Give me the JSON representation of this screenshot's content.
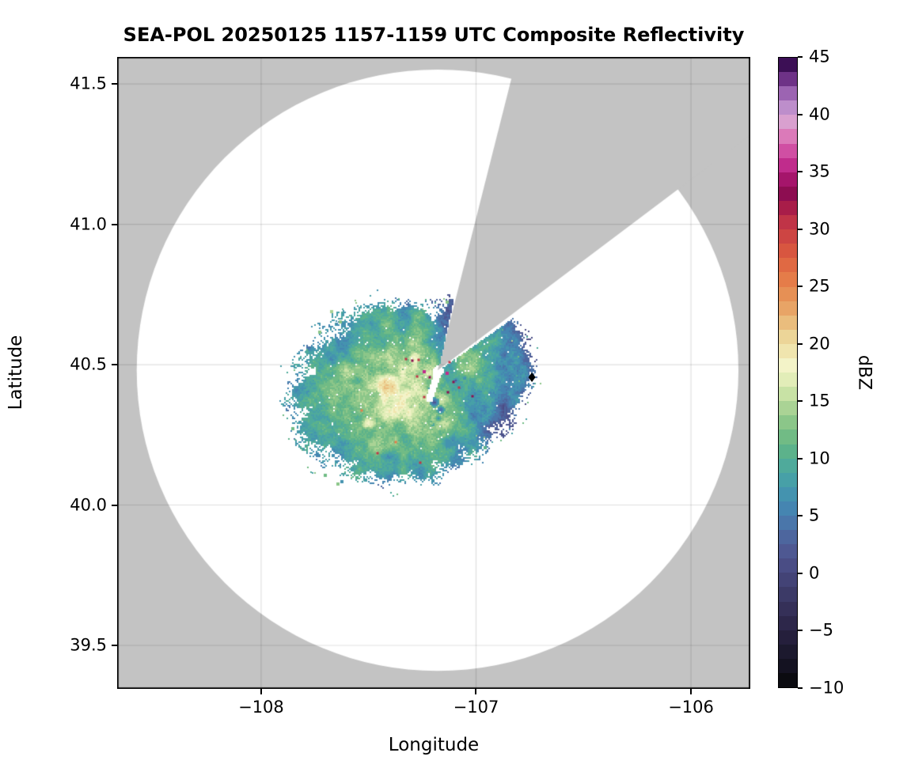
{
  "title": "SEA-POL 20250125 1157-1159 UTC Composite Reflectivity",
  "chart_data": {
    "type": "heatmap",
    "title": "SEA-POL 20250125 1157-1159 UTC Composite Reflectivity",
    "xlabel": "Longitude",
    "ylabel": "Latitude",
    "axes": {
      "xlim": [
        -108.67,
        -105.724
      ],
      "ylim": [
        39.345,
        41.596
      ],
      "xticks": [
        {
          "value": -108,
          "label": "−108"
        },
        {
          "value": -107,
          "label": "−107"
        },
        {
          "value": -106,
          "label": "−106"
        }
      ],
      "yticks": [
        {
          "value": 39.5,
          "label": "39.5"
        },
        {
          "value": 40.0,
          "label": "40.0"
        },
        {
          "value": 40.5,
          "label": "40.5"
        },
        {
          "value": 41.0,
          "label": "41.0"
        },
        {
          "value": 41.5,
          "label": "41.5"
        }
      ],
      "grid": true,
      "gridline_color": "rgba(0,0,0,0.12)"
    },
    "colorbar": {
      "label": "dBZ",
      "min": -10,
      "max": 45,
      "segment_step": 1.25,
      "ticks": [
        {
          "value": -10,
          "label": "−10"
        },
        {
          "value": -5,
          "label": "−5"
        },
        {
          "value": 0,
          "label": "0"
        },
        {
          "value": 5,
          "label": "5"
        },
        {
          "value": 10,
          "label": "10"
        },
        {
          "value": 15,
          "label": "15"
        },
        {
          "value": 20,
          "label": "20"
        },
        {
          "value": 25,
          "label": "25"
        },
        {
          "value": 30,
          "label": "30"
        },
        {
          "value": 35,
          "label": "35"
        },
        {
          "value": 40,
          "label": "40"
        },
        {
          "value": 45,
          "label": "45"
        }
      ],
      "segments_bottom_to_top": [
        "#0b0b10",
        "#141221",
        "#1c192e",
        "#251f3c",
        "#2d274a",
        "#353058",
        "#3c3a67",
        "#434376",
        "#4a4d85",
        "#4e5892",
        "#4d669e",
        "#4a76aa",
        "#4585b1",
        "#4493af",
        "#47a0a7",
        "#4faa9b",
        "#5cb28b",
        "#71bb85",
        "#8bc689",
        "#aad395",
        "#c8e2a5",
        "#e2edb8",
        "#f3f3c8",
        "#f0e5ae",
        "#ecd598",
        "#eabd7d",
        "#e8a466",
        "#e69055",
        "#e57c49",
        "#e06943",
        "#d85640",
        "#cd4543",
        "#c03447",
        "#a81d49",
        "#8d0d51",
        "#a5156b",
        "#c02c8c",
        "#d04fa3",
        "#db7ab9",
        "#d9a0cf",
        "#bd8ecb",
        "#9c64b2",
        "#6e3287",
        "#3c0f55"
      ]
    },
    "radar": {
      "site_lon": -107.179,
      "site_lat": 40.48,
      "range_km": 119,
      "range_deg_lat": 1.071,
      "blocked_sector_azimuth_deg": [
        14.2,
        53.0
      ],
      "outside_coverage_color": "#c3c3c3",
      "coverage_color": "#ffffff"
    },
    "site_marker": {
      "lon": -106.74,
      "lat": 40.455,
      "shape": "diamond",
      "color": "#000000"
    },
    "echo_model": {
      "typical_range_dbz": [
        5,
        20
      ],
      "cells": [
        {
          "lon": -107.356,
          "lat": 40.405,
          "rx_deg_lon": 0.479,
          "ry_deg_lat": 0.299,
          "rot_deg": -10,
          "base_dbz": 18.0,
          "falloff_dbz": 10.2
        },
        {
          "lon": -107.026,
          "lat": 40.497,
          "rx_deg_lon": 0.266,
          "ry_deg_lat": 0.234,
          "rot_deg": -22,
          "base_dbz": 13.2,
          "falloff_dbz": 10.2
        }
      ],
      "warm_patches": [
        {
          "lon": -107.411,
          "lat": 40.43,
          "r_deg": 0.047,
          "boost_dbz": 5.5
        },
        {
          "lon": -107.5,
          "lat": 40.294,
          "r_deg": 0.027,
          "boost_dbz": 4.0
        },
        {
          "lon": -107.293,
          "lat": 40.525,
          "r_deg": 0.024,
          "boost_dbz": 3.0
        }
      ],
      "low_dbz_spots": [
        {
          "lon": -107.208,
          "lat": 40.415,
          "r_deg": 0.013,
          "dbz": 1.0
        },
        {
          "lon": -107.197,
          "lat": 40.368,
          "r_deg": 0.018,
          "dbz": 1.5
        },
        {
          "lon": -107.168,
          "lat": 40.342,
          "r_deg": 0.016,
          "dbz": 2.5
        },
        {
          "lon": -107.179,
          "lat": 40.312,
          "r_deg": 0.015,
          "dbz": 6.0
        },
        {
          "lon": -107.098,
          "lat": 40.446,
          "r_deg": 0.009,
          "dbz": 1.0
        },
        {
          "lon": -107.057,
          "lat": 40.455,
          "r_deg": 0.007,
          "dbz": 3.0
        },
        {
          "lon": -107.112,
          "lat": 40.232,
          "r_deg": 0.015,
          "dbz": 6.5
        },
        {
          "lon": -106.902,
          "lat": 40.263,
          "r_deg": 0.012,
          "dbz": 6.0
        },
        {
          "lon": -106.961,
          "lat": 40.334,
          "r_deg": 0.01,
          "dbz": 7.0
        }
      ],
      "high_dbz_specks": [
        {
          "lon": -107.326,
          "lat": 40.52,
          "dbz": 31.0
        },
        {
          "lon": -107.297,
          "lat": 40.514,
          "dbz": 33.5
        },
        {
          "lon": -107.267,
          "lat": 40.517,
          "dbz": 31.0
        },
        {
          "lon": -107.241,
          "lat": 40.475,
          "dbz": 35.8
        },
        {
          "lon": -107.275,
          "lat": 40.458,
          "dbz": 31.0
        },
        {
          "lon": -107.216,
          "lat": 40.455,
          "dbz": 33.5
        },
        {
          "lon": -107.16,
          "lat": 40.486,
          "dbz": 31.0
        },
        {
          "lon": -107.135,
          "lat": 40.469,
          "dbz": 35.8
        },
        {
          "lon": -107.124,
          "lat": 40.508,
          "dbz": 31.0
        },
        {
          "lon": -107.105,
          "lat": 40.438,
          "dbz": 33.5
        },
        {
          "lon": -107.079,
          "lat": 40.418,
          "dbz": 31.0
        },
        {
          "lon": -107.131,
          "lat": 40.401,
          "dbz": 33.5
        },
        {
          "lon": -107.241,
          "lat": 40.385,
          "dbz": 31.0
        },
        {
          "lon": -107.26,
          "lat": 40.151,
          "dbz": 31.0
        },
        {
          "lon": -107.017,
          "lat": 40.387,
          "dbz": 33.5
        },
        {
          "lon": -107.459,
          "lat": 40.184,
          "dbz": 31.0
        },
        {
          "lon": -107.374,
          "lat": 40.224,
          "dbz": 25.5
        },
        {
          "lon": -107.533,
          "lat": 40.337,
          "dbz": 25.5
        }
      ]
    }
  }
}
